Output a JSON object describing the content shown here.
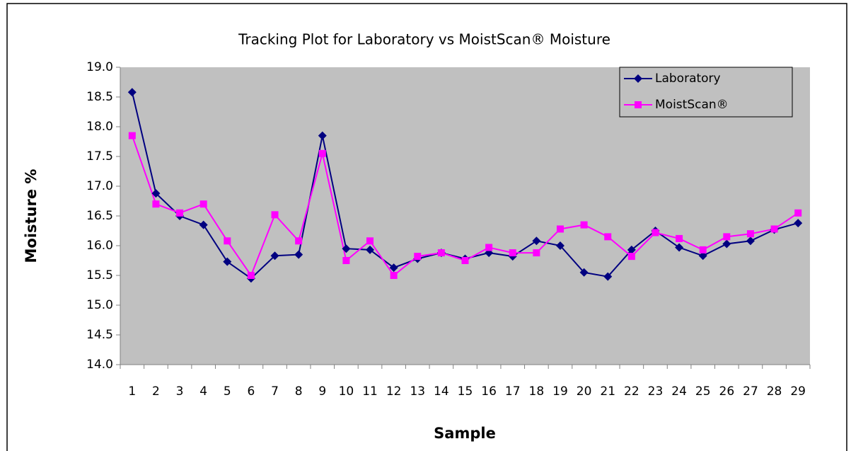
{
  "chart_data": {
    "type": "line",
    "title": "Tracking Plot for Laboratory vs MoistScan® Moisture",
    "x_label": "Sample",
    "y_label": "Moisture %",
    "categories": [
      "1",
      "2",
      "3",
      "4",
      "5",
      "6",
      "7",
      "8",
      "9",
      "10",
      "11",
      "12",
      "13",
      "14",
      "15",
      "16",
      "17",
      "18",
      "19",
      "20",
      "21",
      "22",
      "23",
      "24",
      "25",
      "26",
      "27",
      "28",
      "29"
    ],
    "series": [
      {
        "name": "Laboratory",
        "color": "#000080",
        "marker": "diamond",
        "values": [
          18.58,
          16.88,
          16.5,
          16.35,
          15.73,
          15.45,
          15.83,
          15.85,
          17.85,
          15.95,
          15.93,
          15.63,
          15.78,
          15.88,
          15.78,
          15.88,
          15.82,
          16.08,
          16.0,
          15.55,
          15.48,
          15.93,
          16.25,
          15.97,
          15.83,
          16.03,
          16.08,
          16.27,
          16.38
        ]
      },
      {
        "name": "MoistScan®",
        "color": "#ff00ff",
        "marker": "square",
        "values": [
          17.85,
          16.7,
          16.55,
          16.7,
          16.08,
          15.5,
          16.52,
          16.08,
          17.55,
          15.75,
          16.08,
          15.5,
          15.82,
          15.88,
          15.75,
          15.97,
          15.88,
          15.88,
          16.28,
          16.35,
          16.15,
          15.82,
          16.22,
          16.12,
          15.93,
          16.15,
          16.2,
          16.28,
          16.55
        ]
      }
    ],
    "ylim": [
      14.0,
      19.0
    ],
    "yticks": [
      {
        "value": 14.0,
        "label": "14.0"
      },
      {
        "value": 14.5,
        "label": "14.5"
      },
      {
        "value": 15.0,
        "label": "15.0"
      },
      {
        "value": 15.5,
        "label": "15.5"
      },
      {
        "value": 16.0,
        "label": "16.0"
      },
      {
        "value": 16.5,
        "label": "16.5"
      },
      {
        "value": 17.0,
        "label": "17.0"
      },
      {
        "value": 17.5,
        "label": "17.5"
      },
      {
        "value": 18.0,
        "label": "18.0"
      },
      {
        "value": 18.5,
        "label": "18.5"
      },
      {
        "value": 19.0,
        "label": "19.0"
      }
    ],
    "grid": false,
    "legend": "upper right",
    "plot_background": "#c0c0c0"
  }
}
